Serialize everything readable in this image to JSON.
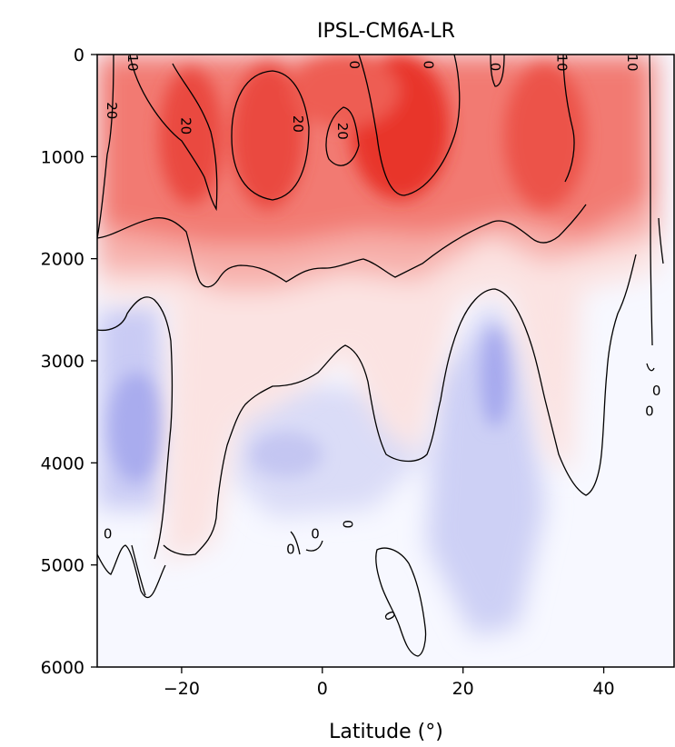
{
  "chart_data": {
    "type": "contour",
    "title": "IPSL-CM6A-LR",
    "xlabel": "Latitude (°)",
    "ylabel": "",
    "xlim": [
      -32,
      50
    ],
    "ylim": [
      6000,
      0
    ],
    "x_ticks": [
      -20,
      0,
      20,
      40
    ],
    "y_ticks": [
      0,
      1000,
      2000,
      3000,
      4000,
      5000,
      6000
    ],
    "colormap": "bwr",
    "positive_color": "#e8302a",
    "negative_color": "#6f6fe6",
    "contour_levels_labeled": [
      0,
      10,
      20
    ],
    "contour_labels": [
      {
        "text": "20",
        "lat": -30,
        "depth": 550,
        "rot": 90
      },
      {
        "text": "10",
        "lat": -27,
        "depth": 80,
        "rot": 90
      },
      {
        "text": "20",
        "lat": -19.5,
        "depth": 700,
        "rot": 90
      },
      {
        "text": "20",
        "lat": -3.5,
        "depth": 680,
        "rot": 90
      },
      {
        "text": "20",
        "lat": 2.8,
        "depth": 750,
        "rot": 90
      },
      {
        "text": "0",
        "lat": 4.5,
        "depth": 100,
        "rot": 90
      },
      {
        "text": "0",
        "lat": 15,
        "depth": 100,
        "rot": 90
      },
      {
        "text": "0",
        "lat": 24.5,
        "depth": 120,
        "rot": 90
      },
      {
        "text": "10",
        "lat": 34,
        "depth": 80,
        "rot": 90
      },
      {
        "text": "10",
        "lat": 44,
        "depth": 80,
        "rot": 90
      },
      {
        "text": "0",
        "lat": -30.5,
        "depth": 4700,
        "rot": 0
      },
      {
        "text": "0",
        "lat": -4.5,
        "depth": 4850,
        "rot": 0
      },
      {
        "text": "0",
        "lat": -1,
        "depth": 4700,
        "rot": 0
      },
      {
        "text": "0",
        "lat": 3.5,
        "depth": 4600,
        "rot": 90
      },
      {
        "text": "0",
        "lat": 9.5,
        "depth": 5500,
        "rot": 60
      },
      {
        "text": "0",
        "lat": 47.5,
        "depth": 3300,
        "rot": 0
      },
      {
        "text": "0",
        "lat": 46.5,
        "depth": 3500,
        "rot": 0
      }
    ],
    "grid": false,
    "legend": "none"
  }
}
